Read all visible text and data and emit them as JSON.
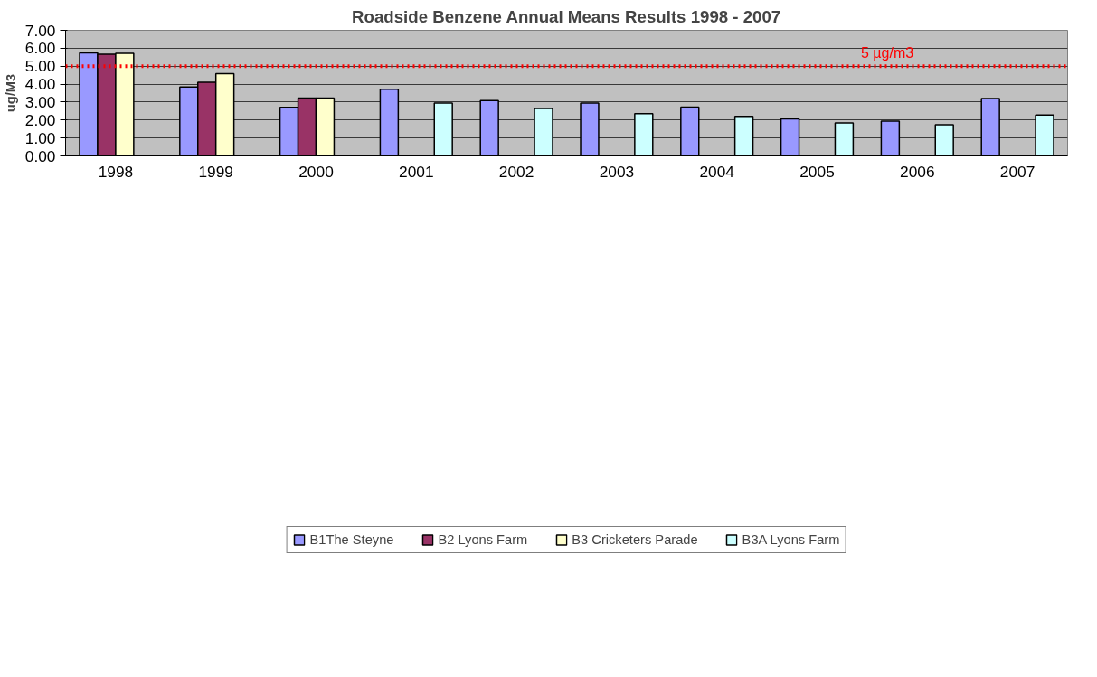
{
  "chart_data": {
    "type": "bar",
    "title": "Roadside Benzene Annual Means Results 1998 - 2007",
    "ylabel": "ug/M3",
    "categories": [
      "1998",
      "1999",
      "2000",
      "2001",
      "2002",
      "2003",
      "2004",
      "2005",
      "2006",
      "2007"
    ],
    "series": [
      {
        "name": "B1The Steyne",
        "color": "#9999ff",
        "values": [
          5.74,
          3.84,
          2.71,
          3.71,
          3.09,
          2.94,
          2.72,
          2.07,
          1.94,
          3.2
        ]
      },
      {
        "name": "B2 Lyons Farm",
        "color": "#993366",
        "values": [
          5.66,
          4.11,
          3.22,
          null,
          null,
          null,
          null,
          null,
          null,
          null
        ]
      },
      {
        "name": "B3 Cricketers Parade",
        "color": "#ffffcc",
        "values": [
          5.71,
          4.58,
          3.22,
          null,
          null,
          null,
          null,
          null,
          null,
          null
        ]
      },
      {
        "name": "B3A Lyons Farm",
        "color": "#ccffff",
        "values": [
          null,
          null,
          null,
          2.94,
          2.64,
          2.35,
          2.2,
          1.84,
          1.74,
          2.28
        ]
      }
    ],
    "ylim": [
      0,
      7
    ],
    "yticks": [
      {
        "value": 0,
        "label": "0.00"
      },
      {
        "value": 1,
        "label": "1.00"
      },
      {
        "value": 2,
        "label": "2.00"
      },
      {
        "value": 3,
        "label": "3.00"
      },
      {
        "value": 4,
        "label": "4.00"
      },
      {
        "value": 5,
        "label": "5.00"
      },
      {
        "value": 6,
        "label": "6.00"
      },
      {
        "value": 7,
        "label": "7.00"
      }
    ],
    "grid": "y",
    "legend": "bottom",
    "ref_lines": [
      {
        "axis": "y",
        "value": 5,
        "label": "5 µg/m3",
        "color": "#ff0000",
        "line_style": "dotted"
      }
    ]
  }
}
